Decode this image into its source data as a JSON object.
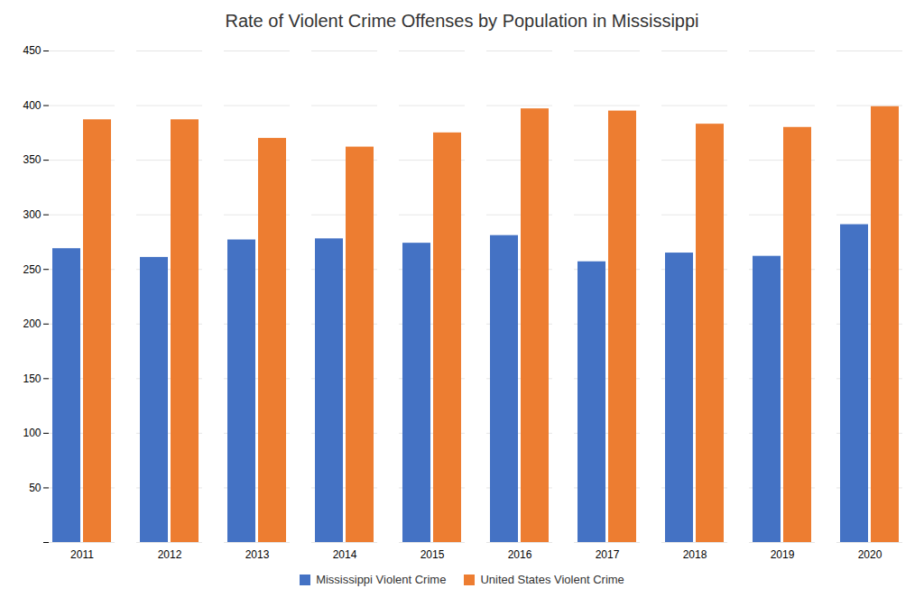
{
  "chart_data": {
    "type": "bar",
    "title": "Rate of Violent Crime Offenses by Population in Mississippi",
    "categories": [
      "2011",
      "2012",
      "2013",
      "2014",
      "2015",
      "2016",
      "2017",
      "2018",
      "2019",
      "2020"
    ],
    "series": [
      {
        "name": "Mississippi Violent Crime",
        "color": "#4472C4",
        "values": [
          269,
          261,
          277,
          278,
          274,
          281,
          257,
          265,
          262,
          291
        ]
      },
      {
        "name": "United States Violent Crime",
        "color": "#ED7D31",
        "values": [
          387,
          387,
          370,
          362,
          375,
          397,
          395,
          383,
          380,
          399
        ]
      }
    ],
    "ylim": [
      0,
      450
    ],
    "yticks": [
      {
        "value": 0,
        "label": ""
      },
      50,
      100,
      150,
      200,
      250,
      300,
      350,
      400,
      450
    ],
    "grid": true,
    "legend": "bottom"
  }
}
